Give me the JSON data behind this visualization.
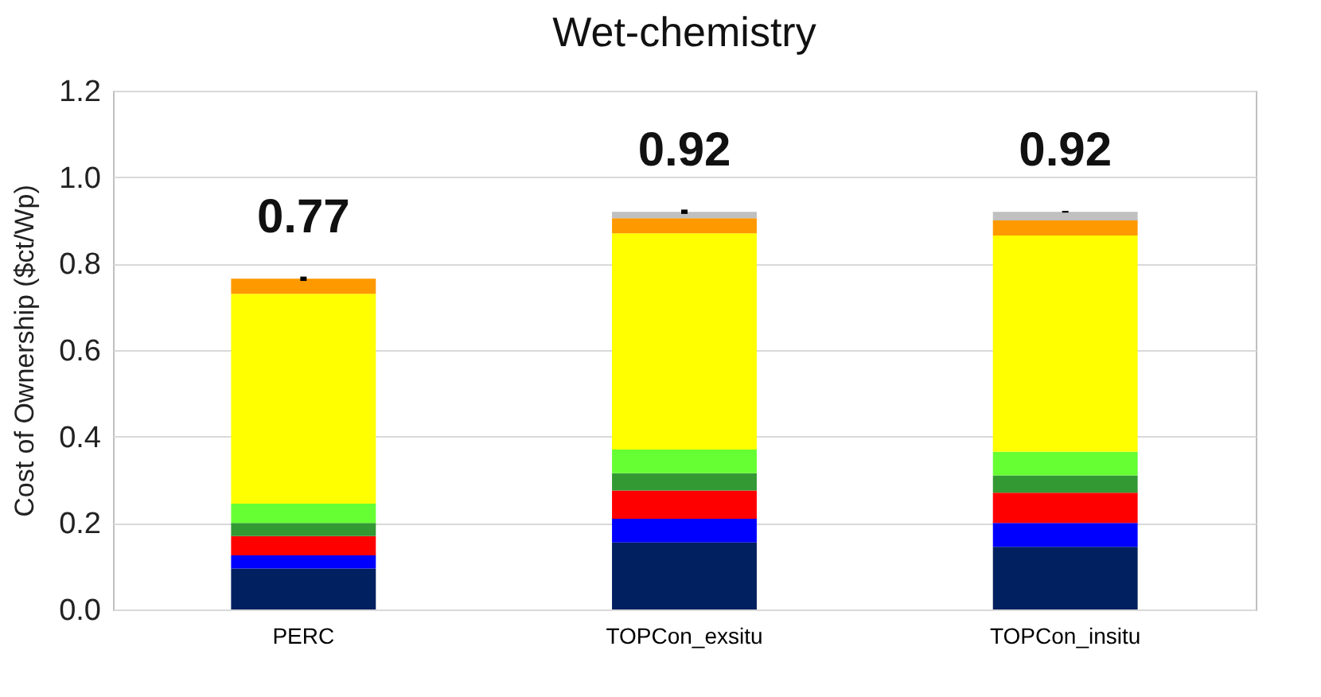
{
  "chart_data": {
    "type": "bar",
    "title": "Wet-chemistry",
    "ylabel": "Cost of Ownership ($ct/Wp)",
    "categories": [
      "PERC",
      "TOPCon_exsitu",
      "TOPCon_insitu"
    ],
    "stacked": true,
    "series": [
      {
        "color": "#002060",
        "values": [
          0.095,
          0.155,
          0.145
        ]
      },
      {
        "color": "#0000ff",
        "values": [
          0.03,
          0.055,
          0.055
        ]
      },
      {
        "color": "#ff0000",
        "values": [
          0.045,
          0.065,
          0.07
        ]
      },
      {
        "color": "#339933",
        "values": [
          0.03,
          0.04,
          0.04
        ]
      },
      {
        "color": "#66ff33",
        "values": [
          0.045,
          0.055,
          0.055
        ]
      },
      {
        "color": "#ffff00",
        "values": [
          0.485,
          0.5,
          0.5
        ]
      },
      {
        "color": "#ff9900",
        "values": [
          0.035,
          0.035,
          0.035
        ],
        "errors": [
          0.005,
          null,
          null
        ]
      },
      {
        "color": "#c0c0c0",
        "values": [
          null,
          0.015,
          0.02
        ],
        "errors": [
          null,
          0.005,
          0.002
        ]
      }
    ],
    "totals": [
      "0.77",
      "0.92",
      "0.92"
    ],
    "ylim": [
      0,
      1.2
    ],
    "yticks": [
      {
        "value": 0,
        "label": "0.0"
      },
      {
        "value": 0.2,
        "label": "0.2"
      },
      {
        "value": 0.4,
        "label": "0.4"
      },
      {
        "value": 0.6,
        "label": "0.6"
      },
      {
        "value": 0.8,
        "label": "0.8"
      },
      {
        "value": 1,
        "label": "1.0"
      },
      {
        "value": 1.2,
        "label": "1.2"
      }
    ],
    "grid": "y",
    "legend": false
  }
}
